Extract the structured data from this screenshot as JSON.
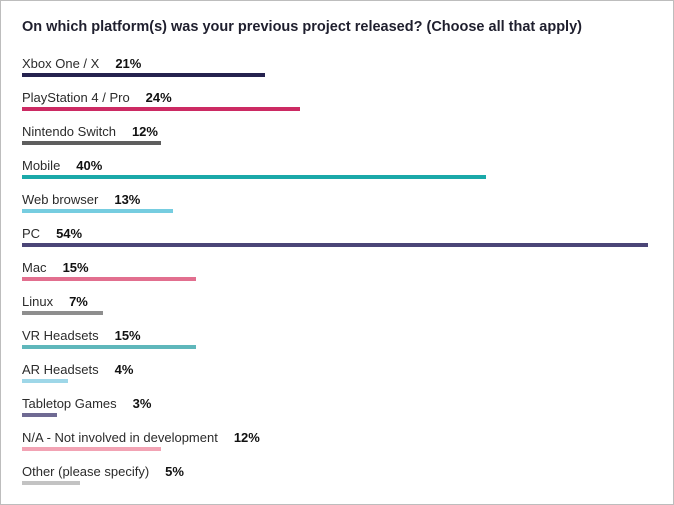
{
  "title": "On which platform(s) was your previous project released? (Choose all that apply)",
  "chart_data": {
    "type": "bar",
    "orientation": "horizontal",
    "title": "On which platform(s) was your previous project released? (Choose all that apply)",
    "xlim": [
      0,
      54
    ],
    "categories": [
      "Xbox One / X",
      "PlayStation 4 / Pro",
      "Nintendo Switch",
      "Mobile",
      "Web browser",
      "PC",
      "Mac",
      "Linux",
      "VR Headsets",
      "AR Headsets",
      "Tabletop Games",
      "N/A - Not involved in development",
      "Other (please specify)"
    ],
    "values": [
      21,
      24,
      12,
      40,
      13,
      54,
      15,
      7,
      15,
      4,
      3,
      12,
      5
    ],
    "value_labels": [
      "21%",
      "24%",
      "12%",
      "40%",
      "13%",
      "54%",
      "15%",
      "7%",
      "15%",
      "4%",
      "3%",
      "12%",
      "5%"
    ],
    "colors": [
      "#25224f",
      "#cc2a63",
      "#5e5e5e",
      "#1aa9a9",
      "#76cde0",
      "#4b4577",
      "#e26f8f",
      "#8e8e8e",
      "#5fb7bb",
      "#9ed7e8",
      "#6f6a93",
      "#f2a3b4",
      "#c3c3c3"
    ]
  }
}
